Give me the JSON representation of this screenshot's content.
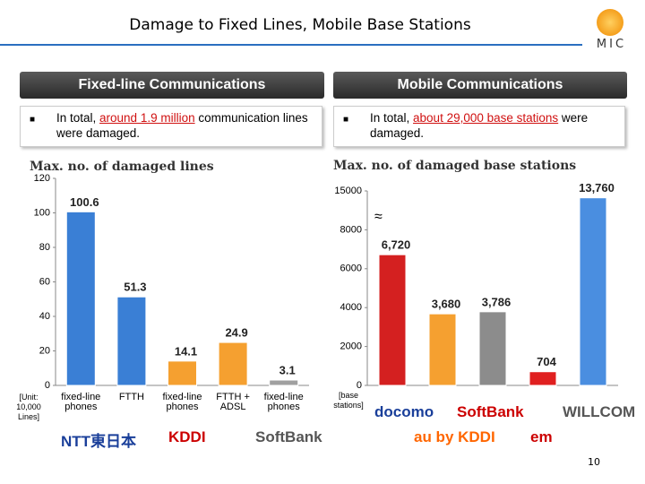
{
  "title": "Damage to Fixed Lines, Mobile Base Stations",
  "org_logo": "MIC",
  "page_number": "10",
  "panels": [
    {
      "header": "Fixed-line Communications",
      "bullet": "■",
      "text_before": "In total, ",
      "highlight": "around 1.9 million",
      "text_after": " communication lines were damaged."
    },
    {
      "header": "Mobile Communications",
      "bullet": "■",
      "text_before": "In total, ",
      "highlight": "about 29,000 base stations",
      "text_after": " were damaged."
    }
  ],
  "logos": {
    "left": [
      "NTT東日本",
      "KDDI",
      "SoftBank"
    ],
    "right": [
      "docomo",
      "SoftBank",
      "WILLCOM",
      "au by KDDI",
      "em"
    ]
  },
  "chart_data": [
    {
      "type": "bar",
      "title": "Max. no. of damaged lines",
      "unit_label": "[Unit: 10,000 Lines]",
      "categories": [
        "fixed-line phones",
        "FTTH",
        "fixed-line phones",
        "FTTH + ADSL",
        "fixed-line phones"
      ],
      "values": [
        100.6,
        51.3,
        14.1,
        24.9,
        3.1
      ],
      "colors": [
        "#3a7fd5",
        "#3a7fd5",
        "#f5a030",
        "#f5a030",
        "#a0a0a0"
      ],
      "ylim": [
        0,
        120
      ],
      "yticks": [
        0,
        20,
        40,
        60,
        80,
        100,
        120
      ],
      "grid": false
    },
    {
      "type": "bar",
      "title": "Max. no. of damaged base stations",
      "unit_label": "[base stations]",
      "categories": [
        null,
        null,
        null,
        null,
        null
      ],
      "values": [
        6720,
        3680,
        3786,
        704,
        13760
      ],
      "value_labels": [
        "6,720",
        "3,680",
        "3,786",
        "704",
        "13,760"
      ],
      "colors": [
        "#d42020",
        "#f5a030",
        "#8c8c8c",
        "#e02020",
        "#4a8ee0"
      ],
      "ylim": [
        0,
        15000
      ],
      "yticks": [
        0,
        2000,
        4000,
        6000,
        8000,
        15000
      ],
      "grid": false,
      "axis_break": [
        8000,
        15000
      ],
      "break_label": "≈"
    }
  ]
}
